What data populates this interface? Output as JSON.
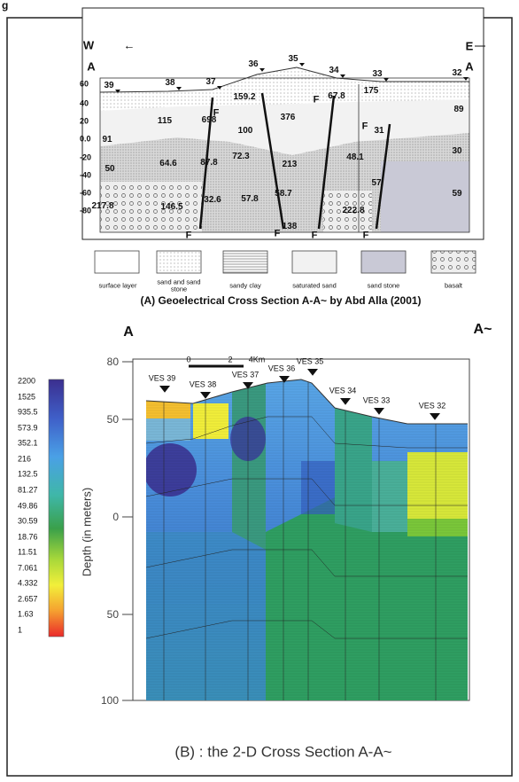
{
  "header_fragment": "g",
  "panel_a": {
    "direction_west": "W",
    "arrow": "←",
    "profile_start": "A",
    "direction_east": "E",
    "profile_end": "A",
    "elevation_ticks": [
      "60",
      "40",
      "20",
      "0.0",
      "-20",
      "-40",
      "-60",
      "-80"
    ],
    "ves_numbers": [
      "39",
      "38",
      "37",
      "36",
      "35",
      "34",
      "33",
      "32"
    ],
    "resistivity_values": [
      "115",
      "698",
      "159.2",
      "376",
      "67.8",
      "175",
      "89",
      "91",
      "100",
      "31",
      "30",
      "64.6",
      "87.8",
      "72.3",
      "213",
      "48.1",
      "50",
      "57",
      "59",
      "217.8",
      "146.5",
      "32.6",
      "57.8",
      "58.7",
      "138",
      "222.8"
    ],
    "fault_labels": [
      "F",
      "F",
      "F",
      "F",
      "F",
      "F",
      "F"
    ],
    "legend": [
      "surface layer",
      "sand and sand stone",
      "sandy clay",
      "saturated sand",
      "sand stone",
      "basalt"
    ],
    "caption": "(A) Geoelectrical Cross Section A-A~ by Abd Alla (2001)"
  },
  "panel_b": {
    "profile_start": "A",
    "profile_end": "A~",
    "scale_labels": [
      "0",
      "2",
      "4Km"
    ],
    "depth_ticks": [
      "80",
      "50",
      "0",
      "50",
      "100"
    ],
    "axis_label": "Depth (in meters)",
    "color_scale": [
      "2200",
      "1525",
      "935.5",
      "573.9",
      "352.1",
      "216",
      "132.5",
      "81.27",
      "49.86",
      "30.59",
      "18.76",
      "11.51",
      "7.061",
      "4.332",
      "2.657",
      "1.63",
      "1"
    ],
    "ves_labels": [
      "VES 39",
      "VES 38",
      "VES 37",
      "VES 36",
      "VES 35",
      "VES 34",
      "VES 33",
      "VES 32"
    ],
    "caption": "(B) : the 2-D Cross Section A-A~"
  }
}
